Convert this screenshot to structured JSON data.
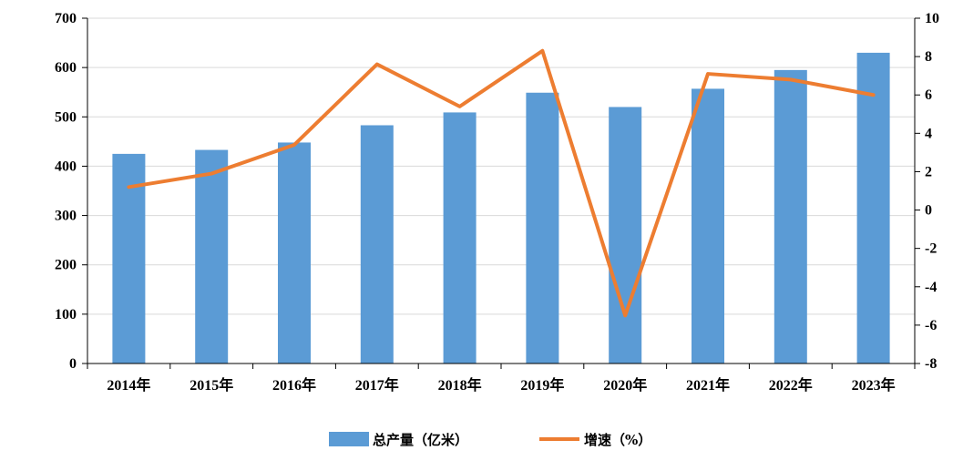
{
  "chart_data": {
    "type": "bar",
    "categories": [
      "2014年",
      "2015年",
      "2016年",
      "2017年",
      "2018年",
      "2019年",
      "2020年",
      "2021年",
      "2022年",
      "2023年"
    ],
    "series": [
      {
        "name": "总产量（亿米）",
        "type": "bar",
        "axis": "left",
        "color": "#5B9BD5",
        "values": [
          425,
          433,
          448,
          483,
          509,
          549,
          520,
          557,
          595,
          630
        ]
      },
      {
        "name": "增速（%）",
        "type": "line",
        "axis": "right",
        "color": "#ED7D31",
        "values": [
          1.2,
          1.9,
          3.4,
          7.6,
          5.4,
          8.3,
          -5.5,
          7.1,
          6.8,
          6.0
        ]
      }
    ],
    "y_left": {
      "ylim": [
        0,
        700
      ],
      "ticks": [
        "0",
        "100",
        "200",
        "300",
        "400",
        "500",
        "600",
        "700"
      ]
    },
    "y_right": {
      "ylim": [
        -8,
        10
      ],
      "ticks": [
        "-8",
        "-6",
        "-4",
        "-2",
        "0",
        "2",
        "4",
        "6",
        "8",
        "10"
      ]
    },
    "grid": true,
    "legend": "bottom"
  }
}
